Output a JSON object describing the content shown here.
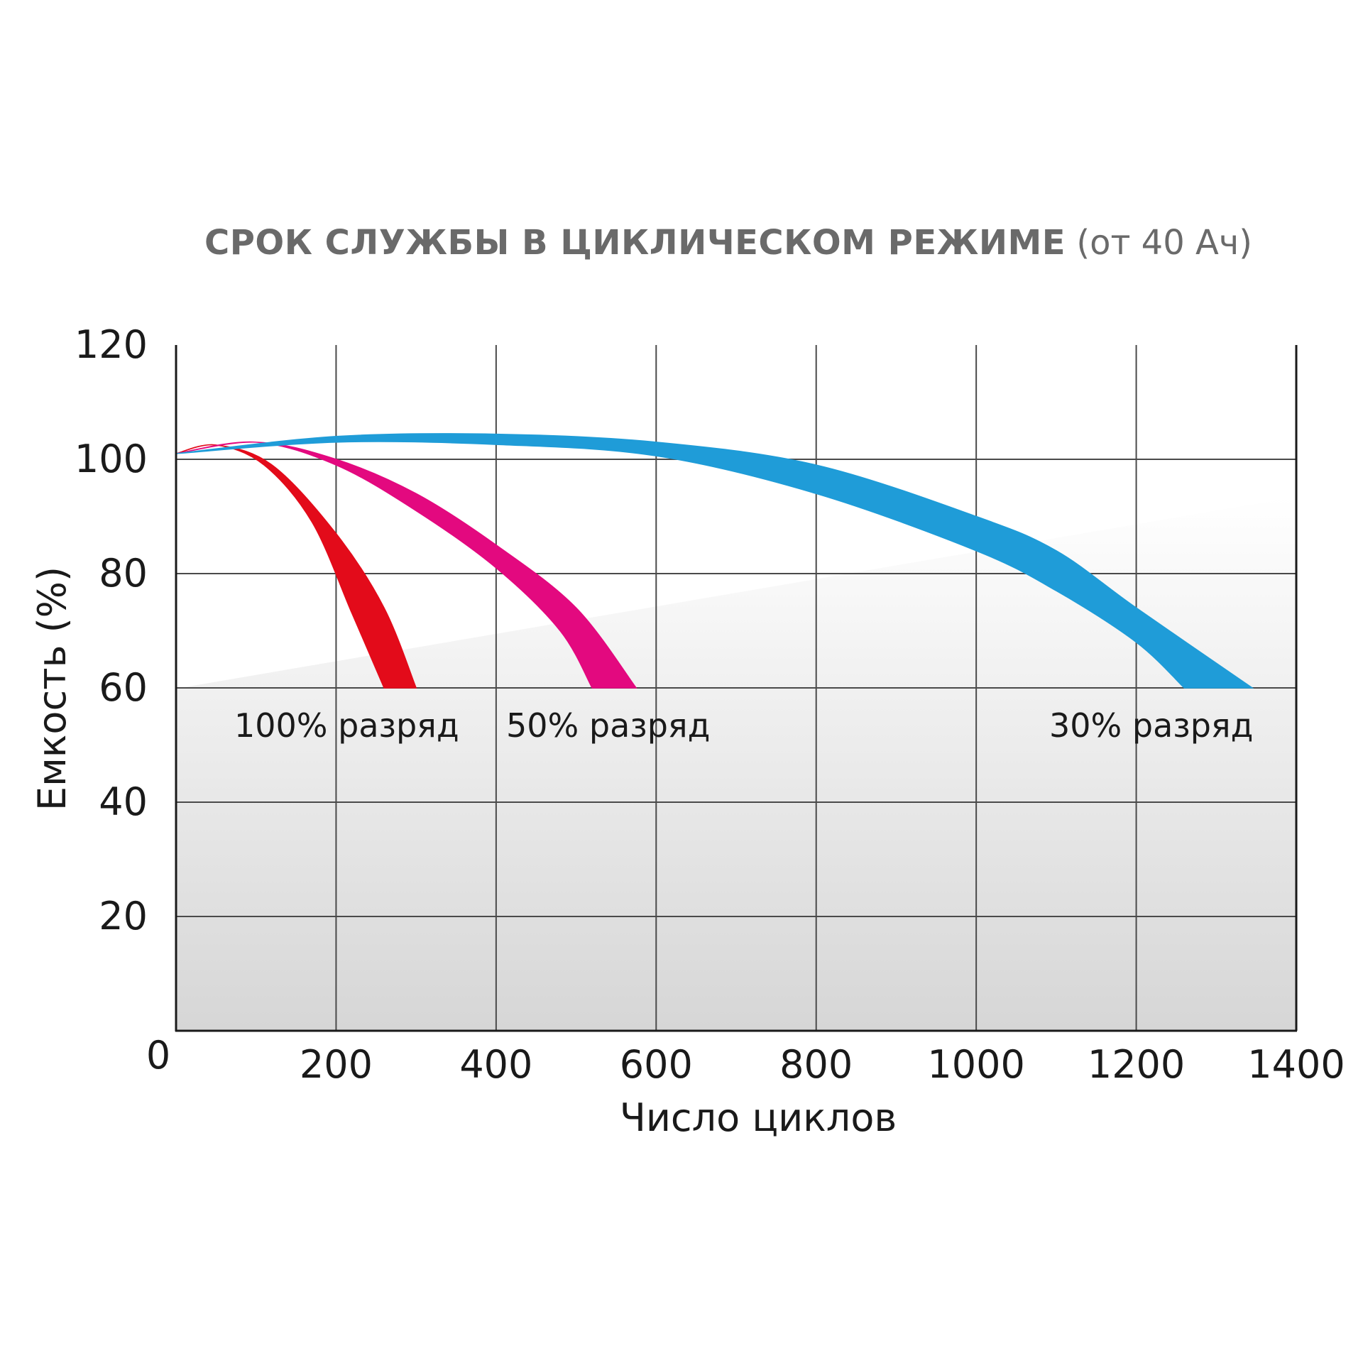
{
  "chart_data": {
    "type": "area",
    "title": "СРОК СЛУЖБЫ В ЦИКЛИЧЕСКОМ РЕЖИМЕ",
    "subtitle": "(от 40 Ач)",
    "xlabel": "Число циклов",
    "ylabel": "Емкость (%)",
    "xlim": [
      0,
      1400
    ],
    "ylim": [
      0,
      120
    ],
    "x_ticks": [
      200,
      400,
      600,
      800,
      1000,
      1200,
      1400
    ],
    "y_ticks": [
      20,
      40,
      60,
      80,
      100,
      120
    ],
    "origin_label": "0",
    "grid": true,
    "series": [
      {
        "name": "100% разряд",
        "color": "#e30b1a",
        "upper": [
          [
            0,
            101
          ],
          [
            50,
            102.5
          ],
          [
            120,
            99
          ],
          [
            200,
            87
          ],
          [
            260,
            74
          ],
          [
            300,
            60
          ]
        ],
        "lower": [
          [
            0,
            101
          ],
          [
            50,
            102.5
          ],
          [
            110,
            99
          ],
          [
            170,
            89
          ],
          [
            220,
            73
          ],
          [
            260,
            60
          ]
        ]
      },
      {
        "name": "50% разряд",
        "color": "#e3097f",
        "upper": [
          [
            0,
            101
          ],
          [
            100,
            103
          ],
          [
            200,
            100
          ],
          [
            300,
            94
          ],
          [
            400,
            85
          ],
          [
            500,
            74
          ],
          [
            575,
            60
          ]
        ],
        "lower": [
          [
            0,
            101
          ],
          [
            100,
            103
          ],
          [
            200,
            99
          ],
          [
            300,
            91
          ],
          [
            400,
            81
          ],
          [
            480,
            70
          ],
          [
            520,
            60
          ]
        ]
      },
      {
        "name": "30% разряд",
        "color": "#1f9cd8",
        "upper": [
          [
            0,
            101
          ],
          [
            200,
            104
          ],
          [
            400,
            104.4
          ],
          [
            600,
            103
          ],
          [
            800,
            99
          ],
          [
            1000,
            90
          ],
          [
            1100,
            84
          ],
          [
            1200,
            74
          ],
          [
            1345,
            60
          ]
        ],
        "lower": [
          [
            0,
            101
          ],
          [
            200,
            103
          ],
          [
            400,
            102.6
          ],
          [
            600,
            100.6
          ],
          [
            800,
            94
          ],
          [
            1000,
            84
          ],
          [
            1100,
            77
          ],
          [
            1200,
            68
          ],
          [
            1260,
            60
          ]
        ]
      }
    ]
  }
}
